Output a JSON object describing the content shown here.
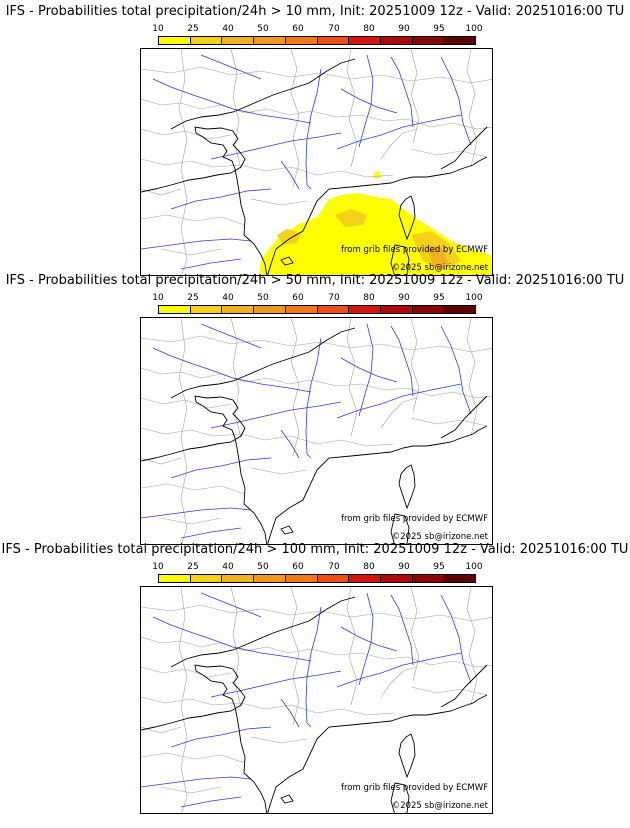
{
  "panels": [
    {
      "title": "IFS - Probabilities total precipitation/24h > 10 mm, Init: 20251009 12z - Valid: 20251016:00 TU",
      "has_precip": true,
      "source_text": "from grib files provided by ECMWF",
      "copyright_text": "©2025 sb@irizone.net"
    },
    {
      "title": "IFS - Probabilities total precipitation/24h > 50 mm, Init: 20251009 12z - Valid: 20251016:00 TU",
      "has_precip": false,
      "source_text": "from grib files provided by ECMWF",
      "copyright_text": "©2025 sb@irizone.net"
    },
    {
      "title": "IFS - Probabilities total precipitation/24h > 100 mm, Init: 20251009 12z - Valid: 20251016:00 TU",
      "has_precip": false,
      "source_text": "from grib files provided by ECMWF",
      "copyright_text": "©2025 sb@irizone.net"
    }
  ],
  "legend": {
    "ticks": [
      "10",
      "25",
      "40",
      "50",
      "60",
      "70",
      "80",
      "90",
      "95",
      "100"
    ],
    "colors": [
      "#ffff00",
      "#f5d21a",
      "#f2b21f",
      "#ef9a1e",
      "#ee7a1a",
      "#ec4e15",
      "#d8140f",
      "#b10a0a",
      "#8a0707",
      "#5c0303"
    ]
  },
  "map_colors": {
    "coastline": "#000000",
    "rivers": "#3040d0",
    "borders": "#a0a0a0",
    "precip_light": "#ffff00",
    "precip_medium": "#f5d21a",
    "precip_strong": "#f2b21f"
  }
}
